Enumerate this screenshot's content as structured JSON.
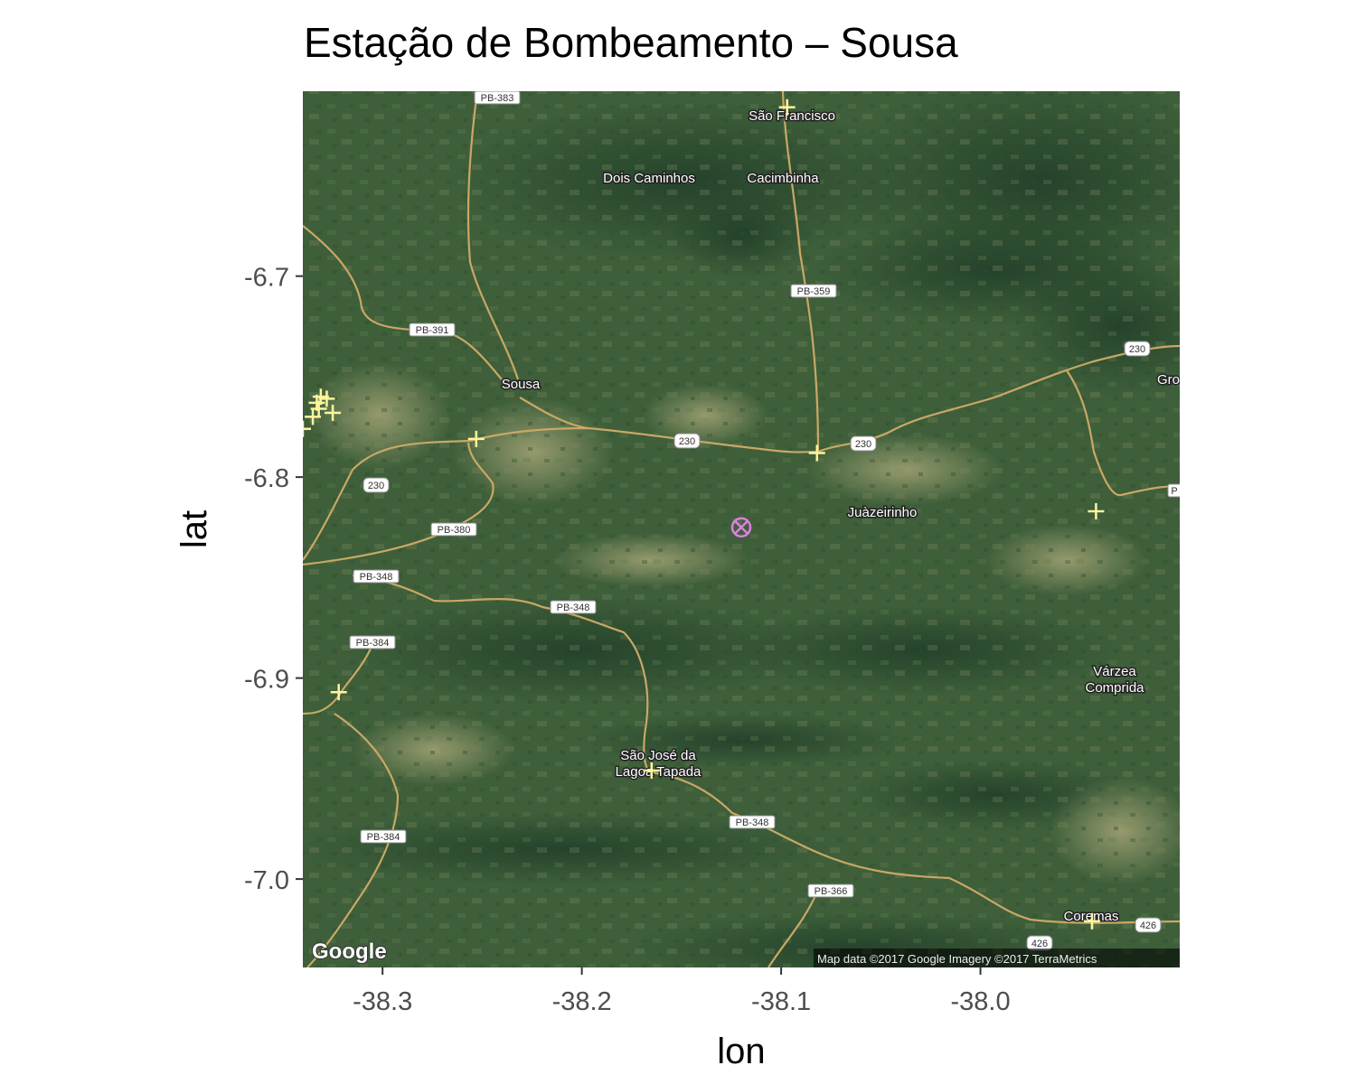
{
  "chart_data": {
    "type": "scatter",
    "title": "Estação de Bombeamento – Sousa",
    "xlabel": "lon",
    "ylabel": "lat",
    "xlim": [
      -38.34,
      -37.9
    ],
    "ylim": [
      -7.044,
      -6.608
    ],
    "x_ticks": [
      -38.3,
      -38.2,
      -38.1,
      -38.0
    ],
    "x_tick_labels": [
      "-38.3",
      "-38.2",
      "-38.1",
      "-38.0"
    ],
    "y_ticks": [
      -6.7,
      -6.8,
      -6.9,
      -7.0
    ],
    "y_tick_labels": [
      "-6.7",
      "-6.8",
      "-6.9",
      "-7.0"
    ],
    "basemap": "satellite",
    "series": [
      {
        "marker": "plus",
        "color": "#fff59d",
        "points": [
          {
            "lon": -38.097,
            "lat": -6.616
          },
          {
            "lon": -38.331,
            "lat": -6.76
          },
          {
            "lon": -38.328,
            "lat": -6.761
          },
          {
            "lon": -38.333,
            "lat": -6.763
          },
          {
            "lon": -38.332,
            "lat": -6.766
          },
          {
            "lon": -38.335,
            "lat": -6.77
          },
          {
            "lon": -38.325,
            "lat": -6.768
          },
          {
            "lon": -38.34,
            "lat": -6.776
          },
          {
            "lon": -38.253,
            "lat": -6.781
          },
          {
            "lon": -38.082,
            "lat": -6.788
          },
          {
            "lon": -37.942,
            "lat": -6.817
          },
          {
            "lon": -38.322,
            "lat": -6.907
          },
          {
            "lon": -38.165,
            "lat": -6.946
          },
          {
            "lon": -37.944,
            "lat": -7.021
          }
        ]
      },
      {
        "marker": "circle-x",
        "color": "#e07ee0",
        "points": [
          {
            "lon": -38.12,
            "lat": -6.825
          }
        ]
      }
    ],
    "map_labels": {
      "places": [
        "São Francisco",
        "Dois Caminhos",
        "Cacimbinha",
        "Sousa",
        "Juàzeirinho",
        "Várzea",
        "Comprida",
        "São José da",
        "Lagoa Tapada",
        "Coremas",
        "Gro"
      ],
      "roads": [
        "PB-383",
        "PB-359",
        "PB-391",
        "230",
        "230",
        "230",
        "230",
        "PB-380",
        "PB-348",
        "PB-348",
        "PB-348",
        "PB-384",
        "PB-384",
        "PB-366",
        "426",
        "426",
        "P"
      ],
      "google_logo": "Google",
      "attribution": "Map data ©2017 Google  Imagery ©2017 TerraMetrics"
    }
  }
}
